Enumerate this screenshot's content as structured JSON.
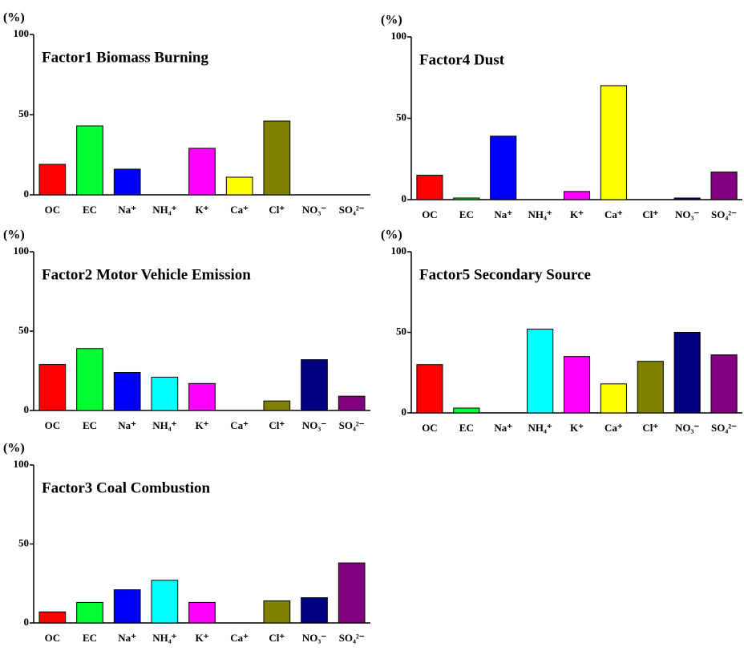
{
  "chart_data": [
    {
      "type": "bar",
      "title": "Factor1  Biomass Burning",
      "ylabel": "(%)",
      "categories": [
        "OC",
        "EC",
        "Na⁺",
        "NH₄⁺",
        "K⁺",
        "Ca⁺",
        "Cl⁺",
        "NO₃⁻",
        "SO₄²⁻"
      ],
      "values": [
        19,
        43,
        16,
        0,
        29,
        11,
        46,
        0,
        0
      ],
      "colors": [
        "#ff0000",
        "#00ff33",
        "#0000ff",
        "#00ffff",
        "#ff00ff",
        "#ffff00",
        "#808000",
        "#000080",
        "#800080"
      ],
      "ylim": [
        0,
        100
      ],
      "yticks": [
        0,
        50,
        100
      ]
    },
    {
      "type": "bar",
      "title": "Factor2  Motor Vehicle Emission",
      "ylabel": "(%)",
      "categories": [
        "OC",
        "EC",
        "Na⁺",
        "NH₄⁺",
        "K⁺",
        "Ca⁺",
        "Cl⁺",
        "NO₃⁻",
        "SO₄²⁻"
      ],
      "values": [
        29,
        39,
        24,
        21,
        17,
        0,
        6,
        32,
        9
      ],
      "colors": [
        "#ff0000",
        "#00ff33",
        "#0000ff",
        "#00ffff",
        "#ff00ff",
        "#ffff00",
        "#808000",
        "#000080",
        "#800080"
      ],
      "ylim": [
        0,
        100
      ],
      "yticks": [
        0,
        50,
        100
      ]
    },
    {
      "type": "bar",
      "title": "Factor3  Coal Combustion",
      "ylabel": "(%)",
      "categories": [
        "OC",
        "EC",
        "Na⁺",
        "NH₄⁺",
        "K⁺",
        "Ca⁺",
        "Cl⁺",
        "NO₃⁻",
        "SO₄²⁻"
      ],
      "values": [
        7,
        13,
        21,
        27,
        13,
        0,
        14,
        16,
        38
      ],
      "colors": [
        "#ff0000",
        "#00ff33",
        "#0000ff",
        "#00ffff",
        "#ff00ff",
        "#ffff00",
        "#808000",
        "#000080",
        "#800080"
      ],
      "ylim": [
        0,
        100
      ],
      "yticks": [
        0,
        50,
        100
      ]
    },
    {
      "type": "bar",
      "title": "Factor4  Dust",
      "ylabel": "(%)",
      "categories": [
        "OC",
        "EC",
        "Na⁺",
        "NH₄⁺",
        "K⁺",
        "Ca⁺",
        "Cl⁺",
        "NO₃⁻",
        "SO₄²⁻"
      ],
      "values": [
        15,
        1,
        39,
        0,
        5,
        70,
        0,
        1,
        17
      ],
      "colors": [
        "#ff0000",
        "#00ff33",
        "#0000ff",
        "#00ffff",
        "#ff00ff",
        "#ffff00",
        "#808000",
        "#000080",
        "#800080"
      ],
      "ylim": [
        0,
        100
      ],
      "yticks": [
        0,
        50,
        100
      ]
    },
    {
      "type": "bar",
      "title": "Factor5  Secondary Source",
      "ylabel": "(%)",
      "categories": [
        "OC",
        "EC",
        "Na⁺",
        "NH₄⁺",
        "K⁺",
        "Ca⁺",
        "Cl⁺",
        "NO₃⁻",
        "SO₄²⁻"
      ],
      "values": [
        30,
        3,
        0,
        52,
        35,
        18,
        32,
        50,
        36
      ],
      "colors": [
        "#ff0000",
        "#00ff33",
        "#0000ff",
        "#00ffff",
        "#ff00ff",
        "#ffff00",
        "#808000",
        "#000080",
        "#800080"
      ],
      "ylim": [
        0,
        100
      ],
      "yticks": [
        0,
        50,
        100
      ]
    }
  ]
}
